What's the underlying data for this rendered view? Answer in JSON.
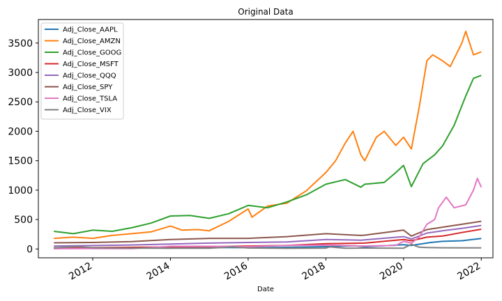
{
  "chart_data": {
    "type": "line",
    "title": "Original Data",
    "xlabel": "Date",
    "ylabel": "",
    "xlim": [
      2010.6,
      2022.3
    ],
    "ylim": [
      -150,
      3900
    ],
    "x_ticks": [
      2012,
      2014,
      2016,
      2018,
      2020,
      2022
    ],
    "y_ticks": [
      0,
      500,
      1000,
      1500,
      2000,
      2500,
      3000,
      3500
    ],
    "grid": false,
    "legend_position": "top-left",
    "series": [
      {
        "name": "Adj_Close_AAPL",
        "color": "#1f77b4",
        "x": [
          2011.0,
          2012.0,
          2013.0,
          2014.0,
          2015.0,
          2016.0,
          2017.0,
          2018.0,
          2018.75,
          2019.0,
          2020.0,
          2020.2,
          2020.7,
          2021.0,
          2021.5,
          2022.0
        ],
        "y": [
          10,
          12,
          17,
          15,
          25,
          23,
          28,
          40,
          55,
          38,
          72,
          60,
          110,
          130,
          140,
          178
        ]
      },
      {
        "name": "Adj_Close_AMZN",
        "color": "#ff7f0e",
        "x": [
          2011.0,
          2011.5,
          2012.0,
          2012.5,
          2013.0,
          2013.5,
          2014.0,
          2014.3,
          2014.7,
          2015.0,
          2015.5,
          2016.0,
          2016.1,
          2016.5,
          2017.0,
          2017.5,
          2018.0,
          2018.25,
          2018.5,
          2018.7,
          2018.9,
          2019.0,
          2019.3,
          2019.5,
          2019.8,
          2020.0,
          2020.2,
          2020.4,
          2020.6,
          2020.75,
          2021.0,
          2021.2,
          2021.5,
          2021.6,
          2021.8,
          2022.0
        ],
        "y": [
          180,
          200,
          180,
          230,
          260,
          290,
          390,
          320,
          330,
          310,
          470,
          680,
          540,
          730,
          780,
          990,
          1300,
          1500,
          1800,
          2000,
          1600,
          1500,
          1900,
          2000,
          1760,
          1900,
          1700,
          2400,
          3200,
          3300,
          3200,
          3100,
          3500,
          3700,
          3300,
          3350
        ]
      },
      {
        "name": "Adj_Close_GOOG",
        "color": "#2ca02c",
        "x": [
          2011.0,
          2011.5,
          2012.0,
          2012.5,
          2013.0,
          2013.5,
          2014.0,
          2014.5,
          2015.0,
          2015.5,
          2016.0,
          2016.5,
          2017.0,
          2017.5,
          2018.0,
          2018.5,
          2018.9,
          2019.0,
          2019.5,
          2019.8,
          2020.0,
          2020.2,
          2020.5,
          2020.8,
          2021.0,
          2021.3,
          2021.6,
          2021.8,
          2022.0
        ],
        "y": [
          300,
          260,
          320,
          300,
          360,
          440,
          560,
          570,
          520,
          600,
          740,
          700,
          800,
          920,
          1100,
          1180,
          1050,
          1100,
          1130,
          1300,
          1420,
          1060,
          1450,
          1600,
          1750,
          2100,
          2600,
          2900,
          2950
        ]
      },
      {
        "name": "Adj_Close_MSFT",
        "color": "#d62728",
        "x": [
          2011.0,
          2012.0,
          2013.0,
          2014.0,
          2015.0,
          2016.0,
          2017.0,
          2018.0,
          2019.0,
          2020.0,
          2020.2,
          2020.6,
          2021.0,
          2021.5,
          2022.0
        ],
        "y": [
          22,
          23,
          28,
          35,
          40,
          50,
          60,
          90,
          100,
          160,
          140,
          200,
          220,
          280,
          335
        ]
      },
      {
        "name": "Adj_Close_QQQ",
        "color": "#9467bd",
        "x": [
          2011.0,
          2012.0,
          2013.0,
          2014.0,
          2015.0,
          2016.0,
          2017.0,
          2018.0,
          2018.9,
          2019.0,
          2020.0,
          2020.2,
          2020.6,
          2021.0,
          2021.5,
          2022.0
        ],
        "y": [
          50,
          58,
          68,
          85,
          100,
          110,
          120,
          160,
          150,
          155,
          210,
          170,
          270,
          310,
          350,
          400
        ]
      },
      {
        "name": "Adj_Close_SPY",
        "color": "#8c564b",
        "x": [
          2011.0,
          2012.0,
          2013.0,
          2014.0,
          2015.0,
          2016.0,
          2017.0,
          2018.0,
          2018.9,
          2019.0,
          2020.0,
          2020.2,
          2020.6,
          2021.0,
          2021.5,
          2022.0
        ],
        "y": [
          105,
          110,
          125,
          160,
          180,
          180,
          210,
          260,
          230,
          235,
          320,
          220,
          330,
          370,
          420,
          470
        ]
      },
      {
        "name": "Adj_Close_TSLA",
        "color": "#e377c2",
        "x": [
          2011.0,
          2012.0,
          2013.0,
          2013.5,
          2014.0,
          2015.0,
          2016.0,
          2017.0,
          2018.0,
          2019.0,
          2019.8,
          2020.0,
          2020.2,
          2020.4,
          2020.6,
          2020.8,
          2020.9,
          2021.1,
          2021.3,
          2021.6,
          2021.8,
          2021.9,
          2022.0
        ],
        "y": [
          5,
          6,
          8,
          25,
          45,
          45,
          40,
          60,
          65,
          50,
          60,
          130,
          100,
          200,
          420,
          500,
          700,
          880,
          700,
          750,
          1000,
          1200,
          1050
        ]
      },
      {
        "name": "Adj_Close_VIX",
        "color": "#7f7f7f",
        "x": [
          2011.0,
          2011.6,
          2011.8,
          2012.0,
          2013.0,
          2014.0,
          2015.0,
          2015.6,
          2016.0,
          2017.0,
          2018.0,
          2018.1,
          2018.5,
          2019.0,
          2020.0,
          2020.2,
          2020.4,
          2020.6,
          2021.0,
          2022.0
        ],
        "y": [
          18,
          40,
          30,
          22,
          15,
          13,
          14,
          35,
          17,
          11,
          15,
          35,
          14,
          16,
          14,
          80,
          30,
          25,
          20,
          18
        ]
      }
    ]
  }
}
